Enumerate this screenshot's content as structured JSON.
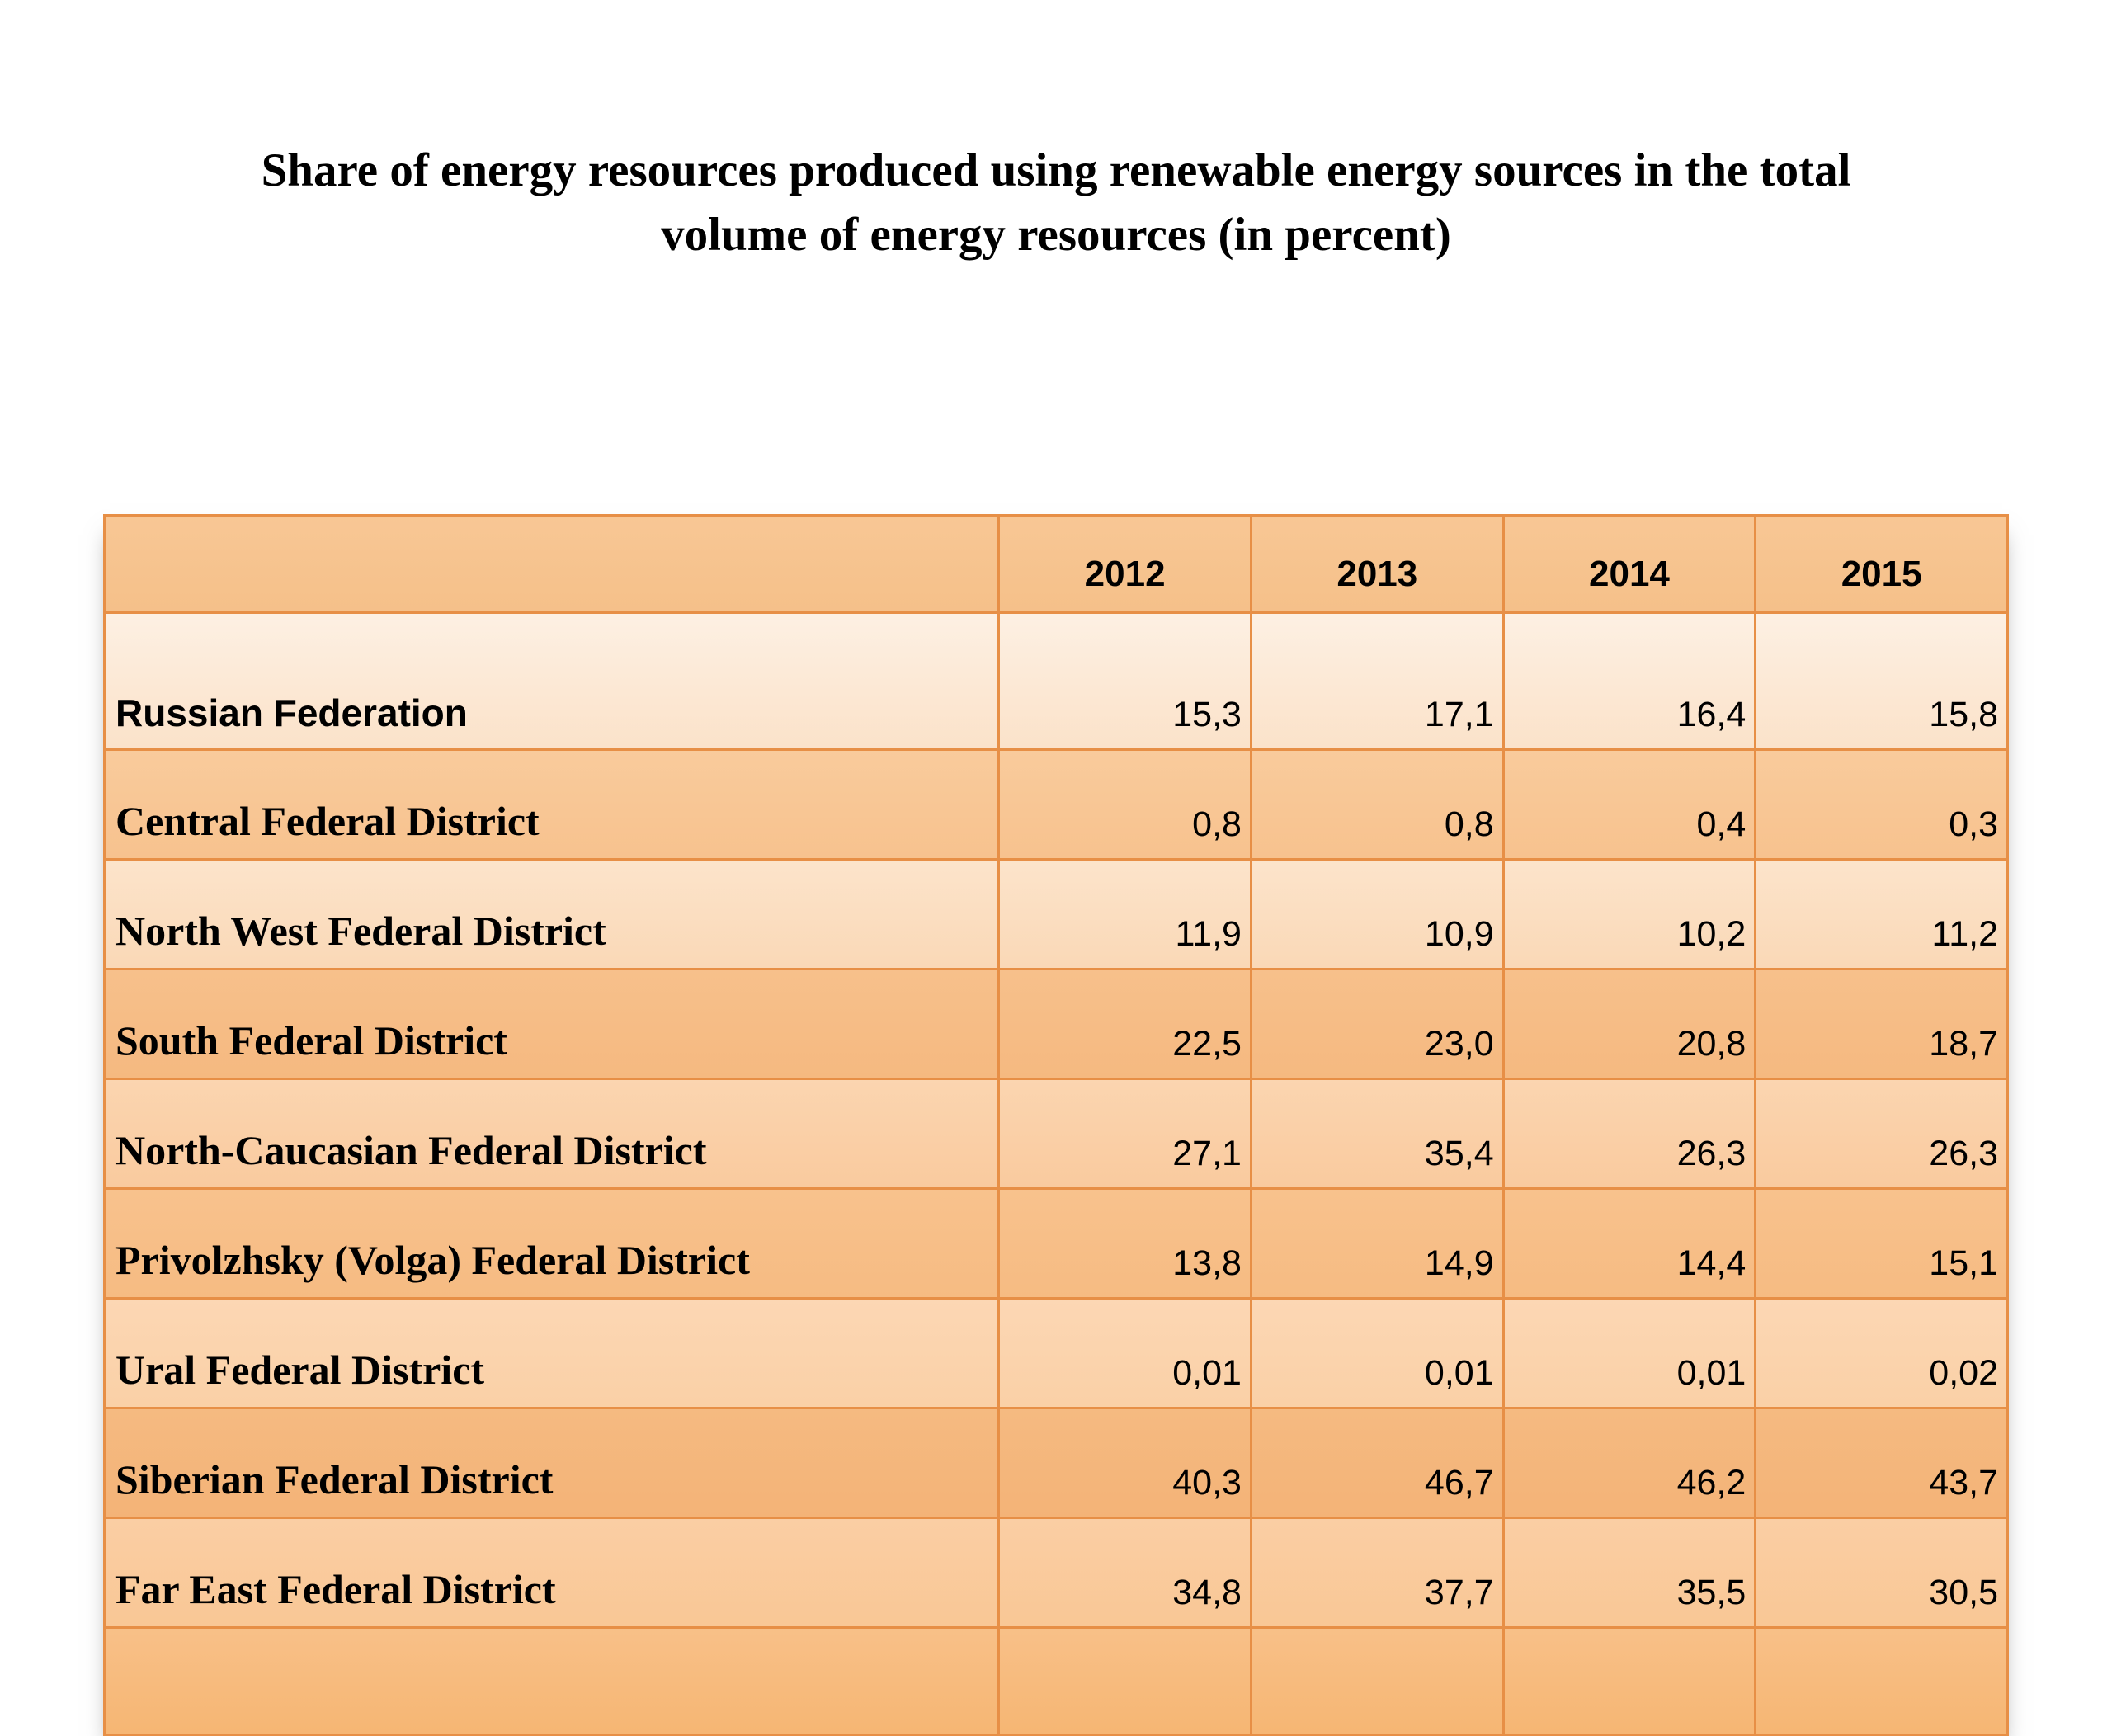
{
  "title": {
    "line1": "Share of energy resources produced using renewable energy sources in the total",
    "line2": "volume of energy resources (in percent)"
  },
  "colors": {
    "page_background": "#ffffff",
    "title_text": "#000000",
    "grid": "#e78f46",
    "header_band": {
      "top": "#f8c795",
      "bottom": "#f5c089"
    }
  },
  "table": {
    "columns": [
      "",
      "2012",
      "2013",
      "2014",
      "2015"
    ],
    "rows": [
      {
        "name": "Russian Federation",
        "font": "sans",
        "kind": "first",
        "values": [
          "15,3",
          "17,1",
          "16,4",
          "15,8"
        ],
        "band": {
          "top": "#fdf0e3",
          "bottom": "#fbe2c9"
        }
      },
      {
        "name": "Central Federal District",
        "font": "serif",
        "kind": "normal",
        "values": [
          "0,8",
          "0,8",
          "0,4",
          "0,3"
        ],
        "band": {
          "top": "#f9cb9c",
          "bottom": "#f7c28e"
        }
      },
      {
        "name": "North West Federal District",
        "font": "serif",
        "kind": "normal",
        "values": [
          "11,9",
          "10,9",
          "10,2",
          "11,2"
        ],
        "band": {
          "top": "#fce4cb",
          "bottom": "#fad8b6"
        }
      },
      {
        "name": "South Federal District",
        "font": "serif",
        "kind": "normal",
        "values": [
          "22,5",
          "23,0",
          "20,8",
          "18,7"
        ],
        "band": {
          "top": "#f7c08b",
          "bottom": "#f5b980"
        }
      },
      {
        "name": "North-Caucasian Federal District",
        "font": "serif",
        "kind": "normal",
        "values": [
          "27,1",
          "35,4",
          "26,3",
          "26,3"
        ],
        "band": {
          "top": "#fbd5b0",
          "bottom": "#f9ca9e"
        }
      },
      {
        "name": "Privolzhsky (Volga) Federal District",
        "font": "serif",
        "kind": "normal",
        "values": [
          "13,8",
          "14,9",
          "14,4",
          "15,1"
        ],
        "band": {
          "top": "#f8c28d",
          "bottom": "#f6bb82"
        }
      },
      {
        "name": "Ural Federal District",
        "font": "serif",
        "kind": "normal",
        "values": [
          "0,01",
          "0,01",
          "0,01",
          "0,02"
        ],
        "band": {
          "top": "#fcd7b4",
          "bottom": "#fad0a6"
        }
      },
      {
        "name": "Siberian Federal District",
        "font": "serif",
        "kind": "normal",
        "values": [
          "40,3",
          "46,7",
          "46,2",
          "43,7"
        ],
        "band": {
          "top": "#f5ba81",
          "bottom": "#f4b377"
        }
      },
      {
        "name": "Far East Federal District",
        "font": "serif",
        "kind": "normal",
        "values": [
          "34,8",
          "37,7",
          "35,5",
          "30,5"
        ],
        "band": {
          "top": "#facea4",
          "bottom": "#f9c795"
        }
      },
      {
        "name": "",
        "font": "serif",
        "kind": "empty",
        "values": [
          "",
          "",
          "",
          ""
        ],
        "band": {
          "top": "#f8c088",
          "bottom": "#f6b673"
        }
      }
    ]
  },
  "chart_data": {
    "type": "table",
    "title": "Share of energy resources produced using renewable energy sources in the total volume of energy resources (in percent)",
    "columns": [
      "2012",
      "2013",
      "2014",
      "2015"
    ],
    "decimal_separator": ",",
    "rows": [
      {
        "name": "Russian Federation",
        "values": [
          15.3,
          17.1,
          16.4,
          15.8
        ]
      },
      {
        "name": "Central Federal District",
        "values": [
          0.8,
          0.8,
          0.4,
          0.3
        ]
      },
      {
        "name": "North West Federal District",
        "values": [
          11.9,
          10.9,
          10.2,
          11.2
        ]
      },
      {
        "name": "South Federal District",
        "values": [
          22.5,
          23.0,
          20.8,
          18.7
        ]
      },
      {
        "name": "North-Caucasian Federal District",
        "values": [
          27.1,
          35.4,
          26.3,
          26.3
        ]
      },
      {
        "name": "Privolzhsky (Volga) Federal District",
        "values": [
          13.8,
          14.9,
          14.4,
          15.1
        ]
      },
      {
        "name": "Ural Federal District",
        "values": [
          0.01,
          0.01,
          0.01,
          0.02
        ]
      },
      {
        "name": "Siberian Federal District",
        "values": [
          40.3,
          46.7,
          46.2,
          43.7
        ]
      },
      {
        "name": "Far East Federal District",
        "values": [
          34.8,
          37.7,
          35.5,
          30.5
        ]
      }
    ]
  }
}
